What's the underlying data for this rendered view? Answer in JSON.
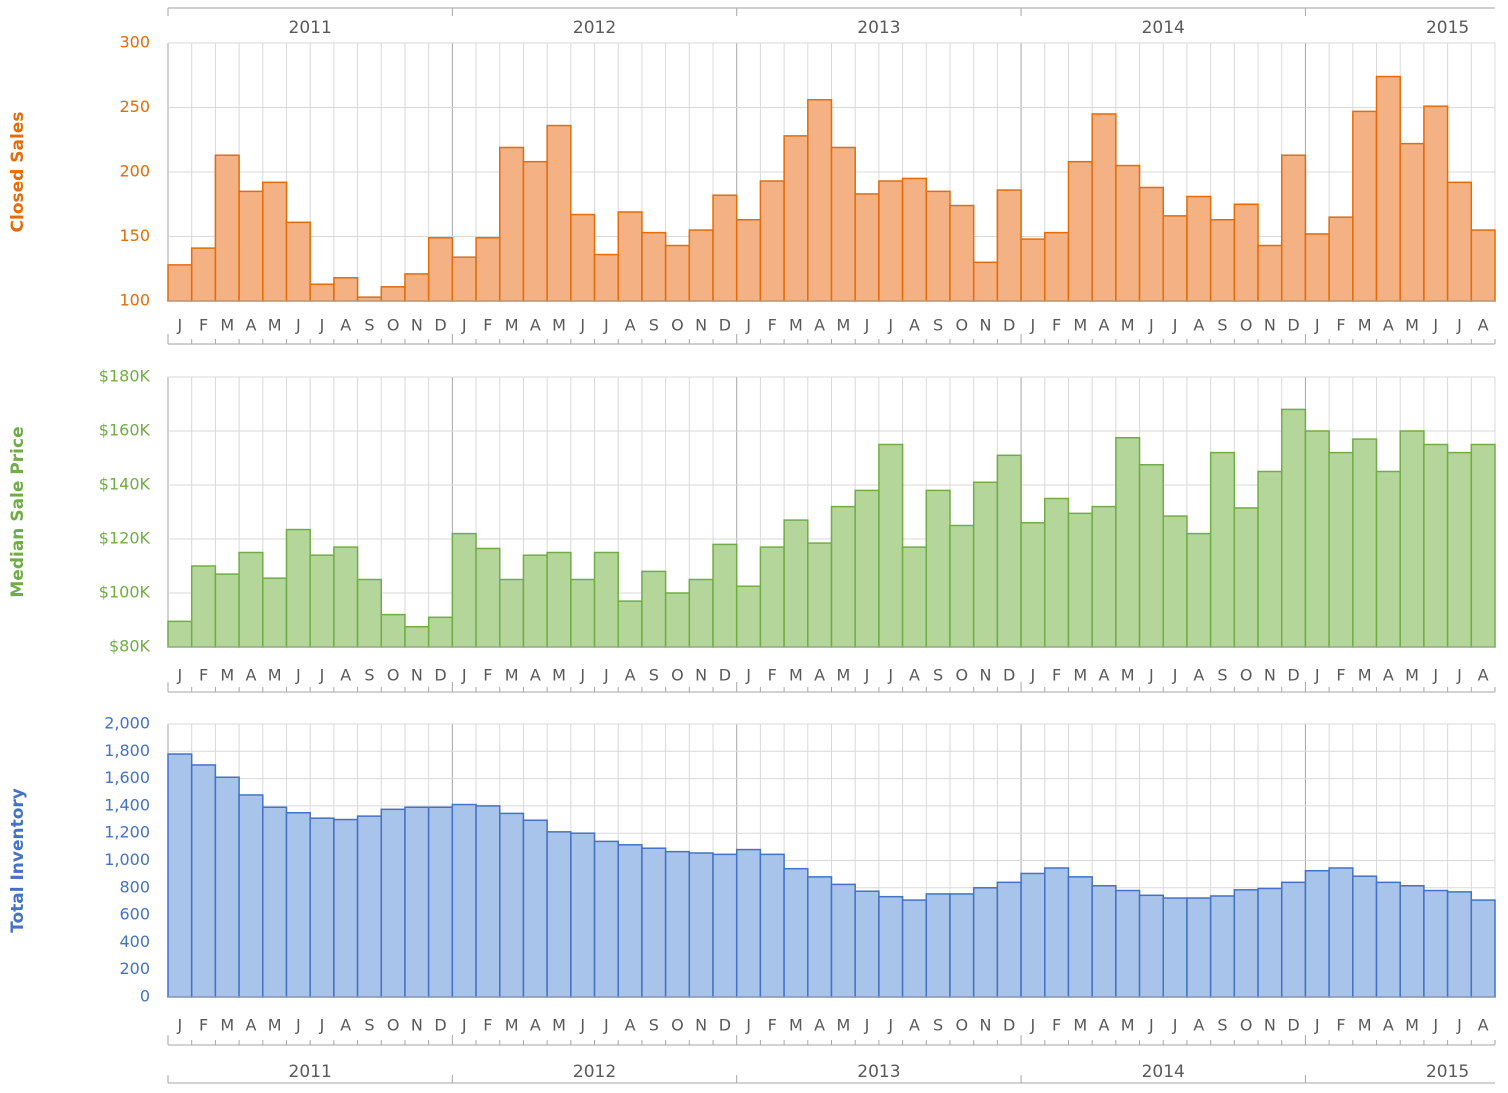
{
  "chart_data": [
    {
      "type": "bar",
      "y_label": "Closed Sales",
      "color": "#f4b183",
      "edge_color": "#e46c0a",
      "years": [
        "2011",
        "2012",
        "2013",
        "2014",
        "2015"
      ],
      "categories": [
        "J",
        "F",
        "M",
        "A",
        "M",
        "J",
        "J",
        "A",
        "S",
        "O",
        "N",
        "D",
        "J",
        "F",
        "M",
        "A",
        "M",
        "J",
        "J",
        "A",
        "S",
        "O",
        "N",
        "D",
        "J",
        "F",
        "M",
        "A",
        "M",
        "J",
        "J",
        "A",
        "S",
        "O",
        "N",
        "D",
        "J",
        "F",
        "M",
        "A",
        "M",
        "J",
        "J",
        "A",
        "S",
        "O",
        "N",
        "D",
        "J",
        "F",
        "M",
        "A",
        "M",
        "J",
        "J",
        "A"
      ],
      "values": [
        128,
        141,
        213,
        185,
        192,
        161,
        113,
        118,
        103,
        111,
        121,
        149,
        134,
        149,
        219,
        208,
        236,
        167,
        136,
        169,
        153,
        143,
        155,
        182,
        163,
        193,
        228,
        256,
        219,
        183,
        193,
        195,
        185,
        174,
        130,
        186,
        148,
        153,
        208,
        245,
        205,
        188,
        166,
        181,
        163,
        175,
        143,
        213,
        152,
        165,
        247,
        274,
        222,
        251,
        192,
        155
      ],
      "ylim": [
        100,
        300
      ],
      "yticks": [
        100,
        150,
        200,
        250,
        300
      ],
      "grid": true
    },
    {
      "type": "bar",
      "y_label": "Median Sale Price",
      "color": "#b5d69a",
      "edge_color": "#70ad47",
      "categories": [
        "J",
        "F",
        "M",
        "A",
        "M",
        "J",
        "J",
        "A",
        "S",
        "O",
        "N",
        "D",
        "J",
        "F",
        "M",
        "A",
        "M",
        "J",
        "J",
        "A",
        "S",
        "O",
        "N",
        "D",
        "J",
        "F",
        "M",
        "A",
        "M",
        "J",
        "J",
        "A",
        "S",
        "O",
        "N",
        "D",
        "J",
        "F",
        "M",
        "A",
        "M",
        "J",
        "J",
        "A",
        "S",
        "O",
        "N",
        "D",
        "J",
        "F",
        "M",
        "A",
        "M",
        "J",
        "J",
        "A"
      ],
      "values": [
        89500,
        110000,
        107000,
        115000,
        105500,
        123500,
        114000,
        117000,
        105000,
        92000,
        87500,
        91000,
        122000,
        116500,
        105000,
        114000,
        115000,
        105000,
        115000,
        97000,
        108000,
        100000,
        105000,
        118000,
        102500,
        117000,
        127000,
        118500,
        132000,
        138000,
        155000,
        117000,
        138000,
        125000,
        141000,
        151000,
        126000,
        135000,
        129500,
        132000,
        157500,
        147500,
        128500,
        122000,
        152000,
        131500,
        145000,
        168000,
        160000,
        152000,
        157000,
        145000,
        160000,
        155000,
        152000,
        155000
      ],
      "ylim": [
        80000,
        180000
      ],
      "yticks": [
        {
          "value": 80000,
          "label": "$80K"
        },
        {
          "value": 100000,
          "label": "$100K"
        },
        {
          "value": 120000,
          "label": "$120K"
        },
        {
          "value": 140000,
          "label": "$140K"
        },
        {
          "value": 160000,
          "label": "$160K"
        },
        {
          "value": 180000,
          "label": "$180K"
        }
      ],
      "grid": true
    },
    {
      "type": "bar",
      "y_label": "Total Inventory",
      "color": "#a9c4eb",
      "edge_color": "#4472c4",
      "years": [
        "2011",
        "2012",
        "2013",
        "2014",
        "2015"
      ],
      "categories": [
        "J",
        "F",
        "M",
        "A",
        "M",
        "J",
        "J",
        "A",
        "S",
        "O",
        "N",
        "D",
        "J",
        "F",
        "M",
        "A",
        "M",
        "J",
        "J",
        "A",
        "S",
        "O",
        "N",
        "D",
        "J",
        "F",
        "M",
        "A",
        "M",
        "J",
        "J",
        "A",
        "S",
        "O",
        "N",
        "D",
        "J",
        "F",
        "M",
        "A",
        "M",
        "J",
        "J",
        "A",
        "S",
        "O",
        "N",
        "D",
        "J",
        "F",
        "M",
        "A",
        "M",
        "J",
        "J",
        "A"
      ],
      "values": [
        1780,
        1700,
        1610,
        1480,
        1390,
        1350,
        1310,
        1300,
        1325,
        1375,
        1390,
        1390,
        1410,
        1400,
        1345,
        1295,
        1210,
        1200,
        1140,
        1115,
        1090,
        1065,
        1055,
        1045,
        1080,
        1045,
        940,
        880,
        825,
        775,
        735,
        710,
        755,
        755,
        800,
        840,
        905,
        945,
        880,
        815,
        780,
        745,
        725,
        725,
        740,
        785,
        795,
        840,
        925,
        945,
        885,
        840,
        815,
        780,
        770,
        710
      ],
      "ylim": [
        0,
        2000
      ],
      "yticks": [
        0,
        200,
        400,
        600,
        800,
        {
          "value": 1000,
          "label": "1,000"
        },
        {
          "value": 1200,
          "label": "1,200"
        },
        {
          "value": 1400,
          "label": "1,400"
        },
        {
          "value": 1600,
          "label": "1,600"
        },
        {
          "value": 1800,
          "label": "1,800"
        },
        {
          "value": 2000,
          "label": "2,000"
        }
      ],
      "grid": true
    }
  ]
}
